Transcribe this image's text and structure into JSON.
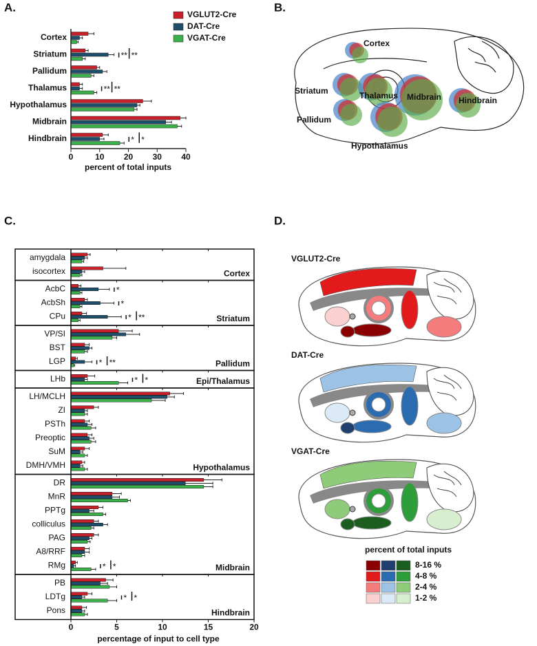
{
  "chart_data": [
    {
      "type": "bar",
      "orientation": "horizontal",
      "panel_label": "A.",
      "xlabel": "percent of total inputs",
      "categories": [
        "Cortex",
        "Striatum",
        "Pallidum",
        "Thalamus",
        "Hypothalamus",
        "Midbrain",
        "Hindbrain"
      ],
      "series": [
        {
          "name": "VGLUT2-Cre",
          "color": "#c8202a",
          "values": [
            6,
            5,
            9,
            3,
            25,
            38,
            11
          ],
          "errors": [
            2,
            1,
            1,
            1,
            3,
            2,
            2
          ]
        },
        {
          "name": "DAT-Cre",
          "color": "#1f4e6b",
          "values": [
            3,
            13,
            11,
            3,
            23,
            33,
            10
          ],
          "errors": [
            1,
            2,
            1.5,
            1,
            1,
            2,
            1.5
          ]
        },
        {
          "name": "VGAT-Cre",
          "color": "#3cb04a",
          "values": [
            2,
            4,
            7,
            8,
            22,
            37,
            17
          ],
          "errors": [
            0.5,
            1,
            1,
            1,
            1,
            1.5,
            1.5
          ]
        }
      ],
      "significance": [
        null,
        [
          "**",
          "**"
        ],
        null,
        [
          "**",
          "**"
        ],
        null,
        null,
        [
          "*",
          "*"
        ]
      ],
      "xlim": [
        0,
        40
      ],
      "xticks": [
        0,
        10,
        20,
        30,
        40
      ]
    },
    {
      "type": "bar",
      "orientation": "horizontal",
      "panel_label": "C.",
      "xlabel": "percentage of input to cell type",
      "groups": [
        {
          "name": "Cortex",
          "categories": [
            "amygdala",
            "isocortex"
          ]
        },
        {
          "name": "Striatum",
          "categories": [
            "AcbC",
            "AcbSh",
            "CPu"
          ]
        },
        {
          "name": "Pallidum",
          "categories": [
            "VP/SI",
            "BST",
            "LGP"
          ]
        },
        {
          "name": "Epi/Thalamus",
          "categories": [
            "LHb"
          ]
        },
        {
          "name": "Hypothalamus",
          "categories": [
            "LH/MCLH",
            "ZI",
            "PSTh",
            "Preoptic",
            "SuM",
            "DMH/VMH"
          ]
        },
        {
          "name": "Midbrain",
          "categories": [
            "DR",
            "MnR",
            "PPTg",
            "colliculus",
            "PAG",
            "A8/RRF",
            "RMg"
          ]
        },
        {
          "name": "Hindbrain",
          "categories": [
            "PB",
            "LDTg",
            "Pons"
          ]
        }
      ],
      "series": [
        {
          "color": "#c8202a",
          "values": [
            1.8,
            3.5,
            0.8,
            1.5,
            1.2,
            5.2,
            1.5,
            0.5,
            1.8,
            10.8,
            2.5,
            1.5,
            1.8,
            1.5,
            1.2,
            14.5,
            4.5,
            3.0,
            2.5,
            2.5,
            1.5,
            0.5,
            3.8,
            1.8,
            1.2
          ],
          "errors": [
            0.3,
            2.5,
            0.3,
            0.3,
            0.5,
            1.5,
            0.5,
            0.2,
            0.8,
            1.5,
            0.5,
            0.5,
            0.5,
            0.5,
            0.3,
            2,
            1,
            0.5,
            0.5,
            0.5,
            0.5,
            0.2,
            0.8,
            0.5,
            0.5
          ]
        },
        {
          "color": "#1f4e6b",
          "values": [
            1.5,
            1.2,
            3.0,
            3.2,
            4.0,
            6.0,
            2.0,
            1.5,
            1.5,
            10.5,
            1.5,
            1.8,
            2.0,
            1.0,
            1.0,
            12.5,
            4.5,
            2.0,
            3.5,
            2.0,
            1.5,
            0.3,
            3.2,
            1.2,
            1.2
          ],
          "errors": [
            0.3,
            0.3,
            1.2,
            1.5,
            1.5,
            1.5,
            0.3,
            0.8,
            0.3,
            0.8,
            0.3,
            0.5,
            0.5,
            0.3,
            0.3,
            3,
            0.8,
            0.5,
            0.5,
            0.3,
            0.5,
            0.2,
            0.8,
            0.3,
            0.3
          ]
        },
        {
          "color": "#3cb04a",
          "values": [
            1.2,
            1.0,
            1.0,
            1.0,
            0.8,
            4.5,
            1.5,
            0.3,
            5.2,
            8.8,
            1.5,
            2.2,
            2.2,
            1.5,
            1.5,
            14.5,
            6.2,
            3.5,
            2.2,
            1.8,
            1.2,
            2.2,
            4.2,
            4.0,
            1.5
          ],
          "errors": [
            0.2,
            0.2,
            0.2,
            0.2,
            0.2,
            0.5,
            0.3,
            0.1,
            1,
            1.5,
            0.3,
            0.5,
            0.5,
            0.3,
            0.3,
            1,
            0.3,
            0.3,
            0.3,
            0.3,
            0.3,
            0.5,
            0.8,
            1,
            0.3
          ]
        }
      ],
      "significance": [
        null,
        null,
        [
          "*"
        ],
        [
          "*"
        ],
        [
          "*",
          "**"
        ],
        null,
        null,
        [
          "*",
          "**"
        ],
        [
          "*",
          "*"
        ],
        null,
        null,
        null,
        null,
        null,
        null,
        null,
        null,
        null,
        null,
        null,
        null,
        [
          "*",
          "*"
        ],
        null,
        [
          "*",
          "*"
        ],
        null
      ],
      "xlim": [
        0,
        20
      ],
      "xticks": [
        0,
        5,
        10,
        15,
        20
      ]
    }
  ],
  "panel_b": {
    "panel_label": "B.",
    "labels": [
      "Cortex",
      "Striatum",
      "Thalamus",
      "Midbrain",
      "Hindbrain",
      "Pallidum",
      "Hypothalamus"
    ]
  },
  "panel_d": {
    "panel_label": "D.",
    "maps": [
      "VGLUT2-Cre",
      "DAT-Cre",
      "VGAT-Cre"
    ],
    "legend": {
      "title": "percent of total inputs",
      "rows": [
        "8-16 %",
        "4-8 %",
        "2-4 %",
        "1-2 %"
      ]
    }
  }
}
